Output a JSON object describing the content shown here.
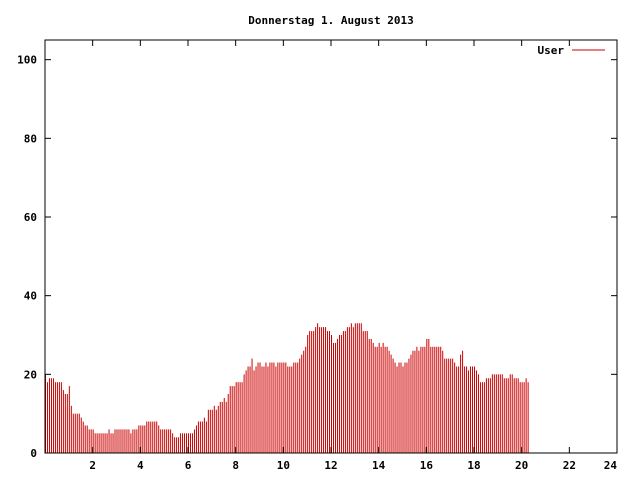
{
  "chart_data": {
    "type": "bar",
    "title": "Donnerstag 1. August 2013",
    "xlabel": "",
    "ylabel": "",
    "xlim": [
      0,
      24
    ],
    "ylim": [
      0,
      105
    ],
    "x_ticks": [
      2,
      4,
      6,
      8,
      10,
      12,
      14,
      16,
      18,
      20,
      22,
      24
    ],
    "y_ticks": [
      0,
      20,
      40,
      60,
      80,
      100
    ],
    "grid": false,
    "legend_position": "top-right",
    "series": [
      {
        "name": "User",
        "color": "#cc0000",
        "interval_minutes": 5,
        "values": [
          20,
          18,
          19,
          19,
          19,
          18,
          18,
          18,
          18,
          16,
          15,
          15,
          17,
          12,
          10,
          10,
          10,
          10,
          9,
          8,
          7,
          7,
          6,
          6,
          6,
          5,
          5,
          5,
          5,
          5,
          5,
          5,
          6,
          5,
          5,
          6,
          6,
          6,
          6,
          6,
          6,
          6,
          6,
          5,
          6,
          6,
          6,
          7,
          7,
          7,
          7,
          8,
          8,
          8,
          8,
          8,
          8,
          7,
          6,
          6,
          6,
          6,
          6,
          6,
          5,
          4,
          4,
          4,
          5,
          5,
          5,
          5,
          5,
          5,
          5,
          6,
          7,
          8,
          8,
          8,
          9,
          8,
          11,
          11,
          11,
          12,
          11,
          12,
          13,
          13,
          14,
          13,
          15,
          17,
          17,
          17,
          18,
          18,
          18,
          18,
          20,
          21,
          22,
          22,
          24,
          21,
          22,
          23,
          23,
          22,
          22,
          23,
          22,
          23,
          23,
          23,
          22,
          23,
          23,
          23,
          23,
          23,
          22,
          22,
          22,
          23,
          23,
          23,
          24,
          25,
          26,
          27,
          30,
          31,
          31,
          31,
          32,
          33,
          32,
          32,
          32,
          32,
          31,
          31,
          30,
          28,
          28,
          29,
          30,
          30,
          31,
          31,
          32,
          32,
          33,
          32,
          33,
          33,
          33,
          33,
          31,
          31,
          31,
          29,
          29,
          28,
          27,
          27,
          28,
          27,
          28,
          27,
          27,
          26,
          25,
          24,
          23,
          22,
          23,
          23,
          22,
          23,
          23,
          24,
          25,
          26,
          26,
          27,
          26,
          27,
          27,
          27,
          29,
          29,
          27,
          27,
          27,
          27,
          27,
          27,
          26,
          24,
          24,
          24,
          24,
          24,
          23,
          22,
          22,
          25,
          26,
          22,
          22,
          21,
          22,
          22,
          22,
          21,
          20,
          18,
          18,
          18,
          19,
          19,
          19,
          20,
          20,
          20,
          20,
          20,
          20,
          19,
          19,
          19,
          20,
          20,
          19,
          19,
          19,
          18,
          18,
          18,
          19,
          18
        ]
      }
    ]
  }
}
